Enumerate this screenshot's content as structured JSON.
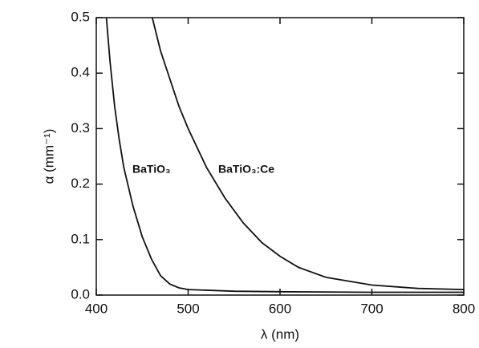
{
  "chart_data": {
    "type": "line",
    "x_label": "λ (nm)",
    "y_label": "α (mm⁻¹)",
    "xlim": [
      400,
      800
    ],
    "xticks": [
      400,
      500,
      600,
      700,
      800
    ],
    "ylim": [
      0,
      0.5
    ],
    "yticks": [
      {
        "value": 0,
        "label": "0.0"
      },
      0.1,
      0.2,
      0.3,
      0.4,
      0.5
    ],
    "series": [
      {
        "name": "BaTiO₃",
        "color": "#111111",
        "x": [
          411,
          415,
          420,
          425,
          430,
          440,
          450,
          460,
          470,
          480,
          490,
          500,
          550,
          600,
          700,
          800
        ],
        "values": [
          0.5,
          0.42,
          0.34,
          0.28,
          0.23,
          0.16,
          0.105,
          0.065,
          0.035,
          0.02,
          0.013,
          0.01,
          0.007,
          0.006,
          0.005,
          0.005
        ]
      },
      {
        "name": "BaTiO₃:Ce",
        "color": "#111111",
        "x": [
          461,
          470,
          480,
          490,
          500,
          520,
          540,
          560,
          580,
          600,
          620,
          650,
          700,
          750,
          800
        ],
        "values": [
          0.5,
          0.44,
          0.39,
          0.34,
          0.3,
          0.23,
          0.175,
          0.13,
          0.095,
          0.07,
          0.05,
          0.032,
          0.018,
          0.012,
          0.01
        ]
      }
    ]
  }
}
